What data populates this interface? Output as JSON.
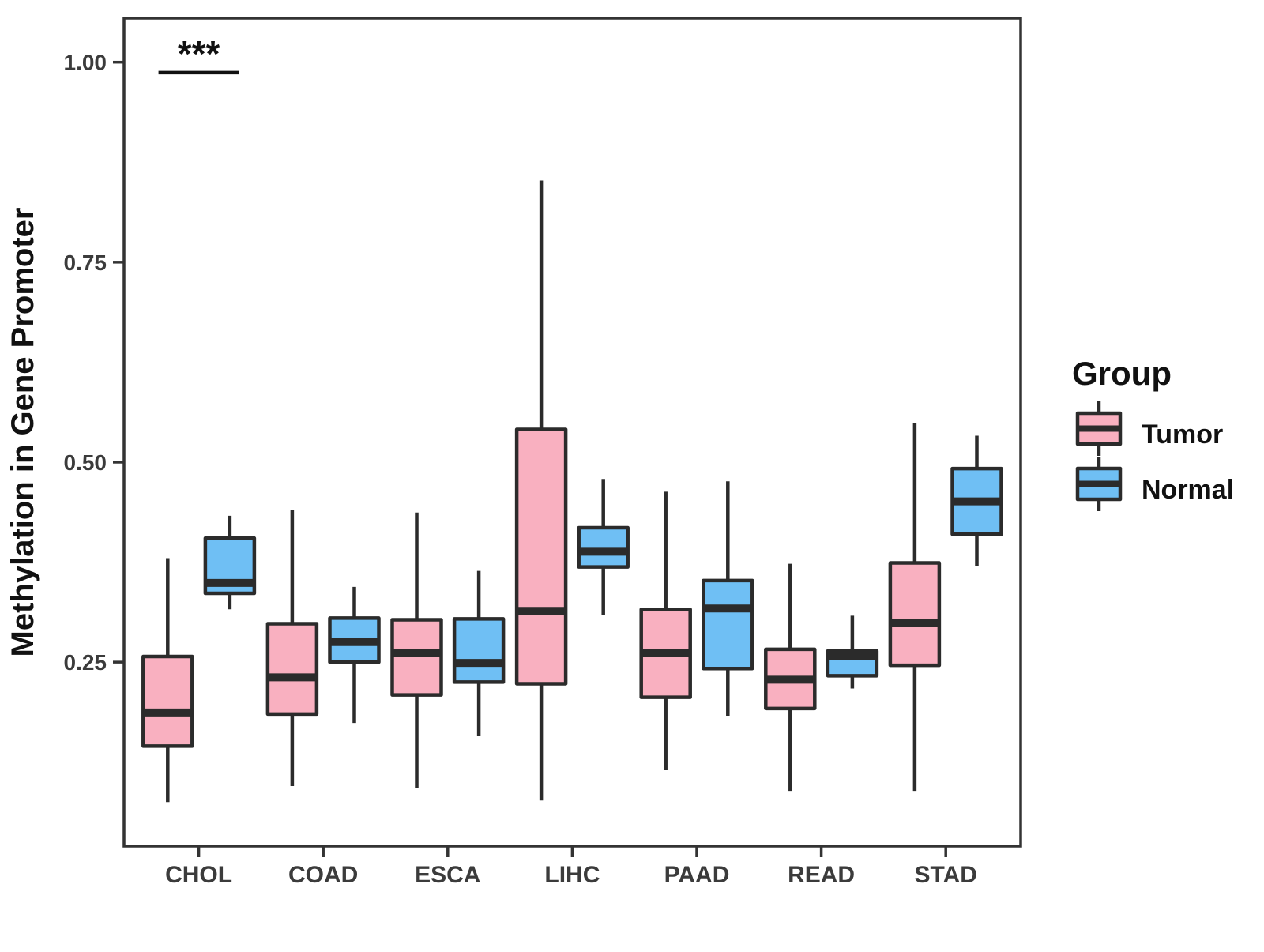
{
  "figure": {
    "background": "#ffffff",
    "text_color": "#3b3b3b",
    "line_color": "#2b2b2b"
  },
  "chart_data": {
    "type": "boxplot",
    "title": "",
    "xlabel": "",
    "ylabel": "Methylation in Gene Promoter",
    "categories": [
      "CHOL",
      "COAD",
      "ESCA",
      "LIHC",
      "PAAD",
      "READ",
      "STAD"
    ],
    "groups": [
      "Tumor",
      "Normal"
    ],
    "colors": {
      "tumor": "#F9B0C0",
      "normal": "#6FBFF4",
      "stroke": "#2b2b2b"
    },
    "ylim": [
      0.02,
      1.055
    ],
    "grid": "off",
    "legend_position": "right",
    "yticks": [
      {
        "value": 0.25,
        "label": "0.25"
      },
      {
        "value": 0.5,
        "label": "0.50"
      },
      {
        "value": 0.75,
        "label": "0.75"
      },
      {
        "value": 1.0,
        "label": "1.00"
      }
    ],
    "series": [
      {
        "name": "Tumor",
        "color": "#F9B0C0",
        "boxes": [
          {
            "category": "CHOL",
            "low": 0.075,
            "q1": 0.145,
            "median": 0.187,
            "q3": 0.257,
            "high": 0.38
          },
          {
            "category": "COAD",
            "low": 0.095,
            "q1": 0.185,
            "median": 0.231,
            "q3": 0.298,
            "high": 0.44
          },
          {
            "category": "ESCA",
            "low": 0.093,
            "q1": 0.209,
            "median": 0.262,
            "q3": 0.303,
            "high": 0.437
          },
          {
            "category": "LIHC",
            "low": 0.077,
            "q1": 0.223,
            "median": 0.314,
            "q3": 0.541,
            "high": 0.852
          },
          {
            "category": "PAAD",
            "low": 0.115,
            "q1": 0.206,
            "median": 0.261,
            "q3": 0.316,
            "high": 0.463
          },
          {
            "category": "READ",
            "low": 0.089,
            "q1": 0.192,
            "median": 0.228,
            "q3": 0.266,
            "high": 0.373
          },
          {
            "category": "STAD",
            "low": 0.089,
            "q1": 0.246,
            "median": 0.299,
            "q3": 0.374,
            "high": 0.549
          }
        ]
      },
      {
        "name": "Normal",
        "color": "#6FBFF4",
        "boxes": [
          {
            "category": "CHOL",
            "low": 0.316,
            "q1": 0.336,
            "median": 0.349,
            "q3": 0.405,
            "high": 0.433
          },
          {
            "category": "COAD",
            "low": 0.174,
            "q1": 0.25,
            "median": 0.275,
            "q3": 0.305,
            "high": 0.344
          },
          {
            "category": "ESCA",
            "low": 0.158,
            "q1": 0.225,
            "median": 0.249,
            "q3": 0.304,
            "high": 0.364
          },
          {
            "category": "LIHC",
            "low": 0.309,
            "q1": 0.369,
            "median": 0.388,
            "q3": 0.418,
            "high": 0.479
          },
          {
            "category": "PAAD",
            "low": 0.183,
            "q1": 0.242,
            "median": 0.317,
            "q3": 0.352,
            "high": 0.476
          },
          {
            "category": "READ",
            "low": 0.217,
            "q1": 0.233,
            "median": 0.257,
            "q3": 0.264,
            "high": 0.308
          },
          {
            "category": "STAD",
            "low": 0.37,
            "q1": 0.41,
            "median": 0.451,
            "q3": 0.492,
            "high": 0.533
          }
        ]
      }
    ],
    "annotations": [
      {
        "text": "***",
        "category": "CHOL",
        "bar_y": 0.987,
        "note": "significance bracket spanning Tumor-Normal pair of CHOL"
      }
    ]
  },
  "legend": {
    "title": "Group",
    "items": [
      {
        "label": "Tumor",
        "color": "#F9B0C0"
      },
      {
        "label": "Normal",
        "color": "#6FBFF4"
      }
    ]
  }
}
